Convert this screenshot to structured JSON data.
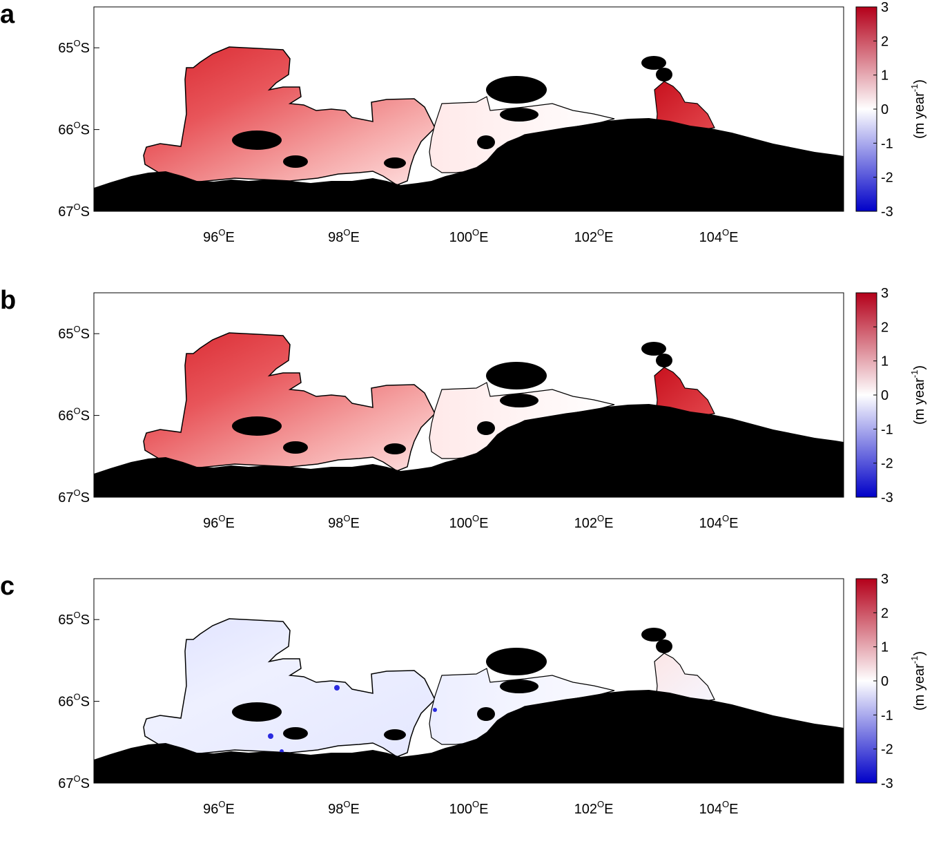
{
  "figure": {
    "panels": [
      {
        "letter": "a"
      },
      {
        "letter": "b"
      },
      {
        "letter": "c"
      }
    ]
  },
  "chart_data": [
    {
      "type": "heatmap",
      "panel": "a",
      "x_ticks": [
        {
          "value": 96,
          "label": "96",
          "suffix": "E"
        },
        {
          "value": 98,
          "label": "98",
          "suffix": "E"
        },
        {
          "value": 100,
          "label": "100",
          "suffix": "E"
        },
        {
          "value": 102,
          "label": "102",
          "suffix": "E"
        },
        {
          "value": 104,
          "label": "104",
          "suffix": "E"
        }
      ],
      "y_ticks": [
        {
          "value": -65,
          "label": "65",
          "suffix": "S"
        },
        {
          "value": -66,
          "label": "66",
          "suffix": "S"
        },
        {
          "value": -67,
          "label": "67",
          "suffix": "S"
        }
      ],
      "xlim": [
        94.0,
        106.0
      ],
      "ylim": [
        -67.0,
        -64.5
      ],
      "colorbar": {
        "label_main": "(m year",
        "label_exp": "-1",
        "label_close": ")",
        "ticks": [
          3,
          2,
          1,
          0,
          -1,
          -2,
          -3
        ],
        "range": [
          -3,
          3
        ],
        "colormap": "blue-white-red"
      },
      "field_character": "strong positive (red) over the western ice shelf and the eastern shelf, near zero over the central/eastern sector",
      "colors": {
        "land_mask": "#000000",
        "positive": "#b2001a",
        "negative": "#0000c8",
        "zero": "#ffffff"
      }
    },
    {
      "type": "heatmap",
      "panel": "b",
      "x_ticks": [
        {
          "value": 96,
          "label": "96",
          "suffix": "E"
        },
        {
          "value": 98,
          "label": "98",
          "suffix": "E"
        },
        {
          "value": 100,
          "label": "100",
          "suffix": "E"
        },
        {
          "value": 102,
          "label": "102",
          "suffix": "E"
        },
        {
          "value": 104,
          "label": "104",
          "suffix": "E"
        }
      ],
      "y_ticks": [
        {
          "value": -65,
          "label": "65",
          "suffix": "S"
        },
        {
          "value": -66,
          "label": "66",
          "suffix": "S"
        },
        {
          "value": -67,
          "label": "67",
          "suffix": "S"
        }
      ],
      "xlim": [
        94.0,
        106.0
      ],
      "ylim": [
        -67.0,
        -64.5
      ],
      "colorbar": {
        "label_main": "(m year",
        "label_exp": "-1",
        "label_close": ")",
        "ticks": [
          3,
          2,
          1,
          0,
          -1,
          -2,
          -3
        ],
        "range": [
          -3,
          3
        ],
        "colormap": "blue-white-red"
      },
      "field_character": "similar to panel a, strong positive (red) over the western ice shelf",
      "colors": {
        "land_mask": "#000000",
        "positive": "#b2001a",
        "negative": "#0000c8",
        "zero": "#ffffff"
      }
    },
    {
      "type": "heatmap",
      "panel": "c",
      "x_ticks": [
        {
          "value": 96,
          "label": "96",
          "suffix": "E"
        },
        {
          "value": 98,
          "label": "98",
          "suffix": "E"
        },
        {
          "value": 100,
          "label": "100",
          "suffix": "E"
        },
        {
          "value": 102,
          "label": "102",
          "suffix": "E"
        },
        {
          "value": 104,
          "label": "104",
          "suffix": "E"
        }
      ],
      "y_ticks": [
        {
          "value": -65,
          "label": "65",
          "suffix": "S"
        },
        {
          "value": -66,
          "label": "66",
          "suffix": "S"
        },
        {
          "value": -67,
          "label": "67",
          "suffix": "S"
        }
      ],
      "xlim": [
        94.0,
        106.0
      ],
      "ylim": [
        -67.0,
        -64.5
      ],
      "colorbar": {
        "label_main": "(m year",
        "label_exp": "-1",
        "label_close": ")",
        "ticks": [
          3,
          2,
          1,
          0,
          -1,
          -2,
          -3
        ],
        "range": [
          -3,
          3
        ],
        "colormap": "blue-white-red"
      },
      "field_character": "small differences, mostly slightly negative (light blue) with a few localized stronger negative spots",
      "colors": {
        "land_mask": "#000000",
        "positive": "#b2001a",
        "negative": "#0000c8",
        "zero": "#ffffff"
      }
    }
  ]
}
